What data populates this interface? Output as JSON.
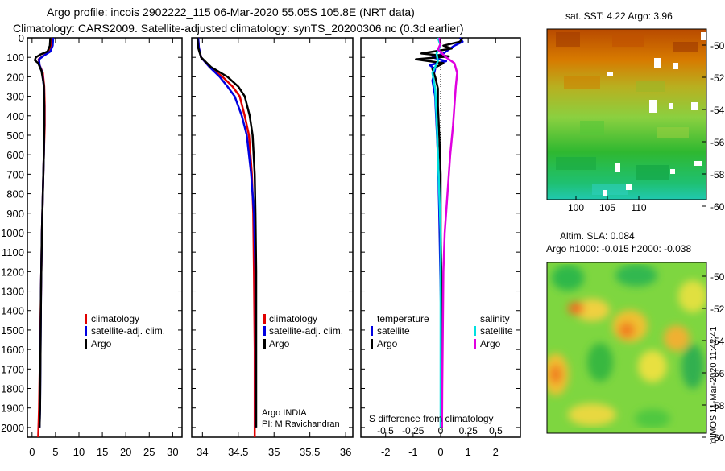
{
  "header": {
    "title_line1": "Argo profile: incois 2902222_115 06-Mar-2020 55.05S 105.8E (NRT data)",
    "title_line2": "Climatology: CARS2009. Satellite-adjusted climatology: synTS_20200306.nc (0.3d earlier)"
  },
  "colors": {
    "climatology": "#e00000",
    "satellite_adj": "#0000e0",
    "argo": "#000000",
    "temp_satellite": "#0000e0",
    "temp_argo": "#000000",
    "sal_satellite": "#00e0e0",
    "sal_argo": "#e000e0"
  },
  "depth_ticks": [
    "0",
    "100",
    "200",
    "300",
    "400",
    "500",
    "600",
    "700",
    "800",
    "900",
    "1000",
    "1100",
    "1200",
    "1300",
    "1400",
    "1500",
    "1600",
    "1700",
    "1800",
    "1900",
    "2000"
  ],
  "legend": {
    "climatology": "climatology",
    "satellite_adj": "satellite-adj. clim.",
    "argo": "Argo",
    "temperature": "temperature",
    "salinity": "salinity",
    "satellite": "satellite"
  },
  "credits": {
    "line1": "Argo INDIA",
    "line2": "PI: M Ravichandran"
  },
  "diff_label": "S difference from climatology",
  "diff_upper_ticks": [
    "-0.5",
    "-0.25",
    "0",
    "0.25",
    "0.5"
  ],
  "maps": {
    "sst": {
      "title": "sat. SST: 4.22 Argo: 3.96",
      "lat_ticks": [
        "-50",
        "-52",
        "-54",
        "-56",
        "-58",
        "-60"
      ],
      "lon_ticks": [
        "100",
        "105",
        "110"
      ]
    },
    "sla": {
      "title1": "Altim. SLA: 0.084",
      "title2": "Argo h1000: -0.015 h2000: -0.038",
      "lat_ticks": [
        "-50",
        "-52",
        "-54",
        "-56",
        "-58",
        "-60"
      ]
    },
    "watermark": "©IMOS 11-Mar-2020 11:42:41"
  },
  "chart_data": [
    {
      "type": "line",
      "name": "temperature_profile",
      "ylabel": "depth",
      "ylim": [
        2050,
        0
      ],
      "xlim": [
        -1,
        32
      ],
      "xticks": [
        "0",
        "5",
        "10",
        "15",
        "20",
        "25",
        "30"
      ],
      "series": [
        {
          "name": "climatology",
          "points": [
            [
              4.2,
              0
            ],
            [
              4.1,
              40
            ],
            [
              3.8,
              70
            ],
            [
              2.5,
              90
            ],
            [
              1.4,
              110
            ],
            [
              1.6,
              140
            ],
            [
              2.3,
              180
            ],
            [
              2.6,
              250
            ],
            [
              2.7,
              350
            ],
            [
              2.7,
              450
            ],
            [
              2.5,
              600
            ],
            [
              2.3,
              800
            ],
            [
              2.1,
              1000
            ],
            [
              1.9,
              1300
            ],
            [
              1.7,
              1600
            ],
            [
              1.5,
              1900
            ],
            [
              1.3,
              2050
            ]
          ]
        },
        {
          "name": "satellite-adj. clim.",
          "points": [
            [
              4.5,
              0
            ],
            [
              4.4,
              40
            ],
            [
              3.9,
              70
            ],
            [
              2.6,
              90
            ],
            [
              1.5,
              110
            ],
            [
              1.6,
              140
            ],
            [
              2.2,
              180
            ],
            [
              2.5,
              250
            ],
            [
              2.6,
              350
            ],
            [
              2.6,
              450
            ],
            [
              2.5,
              600
            ],
            [
              2.3,
              800
            ],
            [
              2.1,
              1000
            ],
            [
              1.9,
              1300
            ],
            [
              1.8,
              1600
            ],
            [
              1.7,
              1900
            ],
            [
              1.6,
              2000
            ]
          ]
        },
        {
          "name": "Argo",
          "points": [
            [
              3.9,
              0
            ],
            [
              3.8,
              40
            ],
            [
              3.3,
              70
            ],
            [
              1.8,
              85
            ],
            [
              0.8,
              100
            ],
            [
              0.6,
              115
            ],
            [
              1.3,
              130
            ],
            [
              2.0,
              170
            ],
            [
              2.5,
              240
            ],
            [
              2.6,
              350
            ],
            [
              2.6,
              450
            ],
            [
              2.5,
              600
            ],
            [
              2.3,
              800
            ],
            [
              2.1,
              1000
            ],
            [
              1.9,
              1300
            ],
            [
              1.8,
              1600
            ],
            [
              1.7,
              1900
            ],
            [
              1.6,
              2000
            ]
          ]
        }
      ]
    },
    {
      "type": "line",
      "name": "salinity_profile",
      "ylim": [
        2050,
        0
      ],
      "xlim": [
        33.85,
        36.1
      ],
      "xticks": [
        "34",
        "34.5",
        "35",
        "35.5",
        "36"
      ],
      "series": [
        {
          "name": "climatology",
          "points": [
            [
              33.94,
              0
            ],
            [
              33.95,
              50
            ],
            [
              33.98,
              100
            ],
            [
              34.1,
              150
            ],
            [
              34.28,
              200
            ],
            [
              34.42,
              250
            ],
            [
              34.52,
              300
            ],
            [
              34.59,
              400
            ],
            [
              34.65,
              500
            ],
            [
              34.69,
              700
            ],
            [
              34.71,
              900
            ],
            [
              34.72,
              1200
            ],
            [
              34.73,
              1600
            ],
            [
              34.73,
              2050
            ]
          ]
        },
        {
          "name": "satellite-adj. clim.",
          "points": [
            [
              33.94,
              0
            ],
            [
              33.95,
              50
            ],
            [
              33.98,
              100
            ],
            [
              34.1,
              150
            ],
            [
              34.24,
              200
            ],
            [
              34.35,
              250
            ],
            [
              34.45,
              300
            ],
            [
              34.55,
              400
            ],
            [
              34.62,
              500
            ],
            [
              34.68,
              700
            ],
            [
              34.72,
              900
            ],
            [
              34.74,
              1200
            ],
            [
              34.74,
              1600
            ],
            [
              34.74,
              2000
            ]
          ]
        },
        {
          "name": "Argo",
          "points": [
            [
              33.93,
              0
            ],
            [
              33.94,
              50
            ],
            [
              33.98,
              100
            ],
            [
              34.12,
              150
            ],
            [
              34.35,
              200
            ],
            [
              34.5,
              250
            ],
            [
              34.59,
              300
            ],
            [
              34.66,
              400
            ],
            [
              34.7,
              500
            ],
            [
              34.73,
              700
            ],
            [
              34.74,
              900
            ],
            [
              34.75,
              1200
            ],
            [
              34.75,
              1600
            ],
            [
              34.75,
              2000
            ]
          ]
        }
      ]
    },
    {
      "type": "line",
      "name": "difference_profile",
      "ylim": [
        2050,
        0
      ],
      "xlim": [
        -2.9,
        2.9
      ],
      "xticks": [
        "-2",
        "-1",
        "0",
        "1",
        "2"
      ],
      "xlabel": "S difference from climatology",
      "series": [
        {
          "name": "temperature satellite",
          "points": [
            [
              0.7,
              0
            ],
            [
              0.8,
              20
            ],
            [
              0.5,
              40
            ],
            [
              0.3,
              60
            ],
            [
              0.1,
              80
            ],
            [
              -0.3,
              100
            ],
            [
              0.2,
              120
            ],
            [
              -0.4,
              140
            ],
            [
              -0.2,
              160
            ],
            [
              -0.3,
              220
            ],
            [
              -0.2,
              300
            ],
            [
              -0.15,
              450
            ],
            [
              -0.1,
              600
            ],
            [
              -0.05,
              900
            ],
            [
              0.0,
              1300
            ],
            [
              0.05,
              1700
            ],
            [
              0.05,
              2000
            ]
          ]
        },
        {
          "name": "temperature Argo",
          "points": [
            [
              0.8,
              0
            ],
            [
              0.7,
              20
            ],
            [
              0.1,
              40
            ],
            [
              0.4,
              55
            ],
            [
              -0.7,
              80
            ],
            [
              0.3,
              95
            ],
            [
              -0.9,
              110
            ],
            [
              0.1,
              130
            ],
            [
              -0.3,
              160
            ],
            [
              -0.2,
              200
            ],
            [
              -0.1,
              260
            ],
            [
              -0.1,
              350
            ],
            [
              -0.05,
              500
            ],
            [
              0.0,
              700
            ],
            [
              0.0,
              1000
            ],
            [
              0.05,
              1400
            ],
            [
              0.05,
              1800
            ],
            [
              0.05,
              2000
            ]
          ]
        },
        {
          "name": "salinity satellite",
          "points": [
            [
              -0.1,
              0
            ],
            [
              0.0,
              40
            ],
            [
              -0.15,
              80
            ],
            [
              -0.1,
              120
            ],
            [
              -0.3,
              180
            ],
            [
              -0.2,
              260
            ],
            [
              -0.15,
              400
            ],
            [
              -0.1,
              600
            ],
            [
              -0.05,
              800
            ],
            [
              0.0,
              1000
            ],
            [
              0.0,
              1400
            ],
            [
              0.0,
              1800
            ],
            [
              0.0,
              2000
            ]
          ]
        },
        {
          "name": "salinity Argo",
          "points": [
            [
              -0.05,
              0
            ],
            [
              0.0,
              30
            ],
            [
              -0.1,
              60
            ],
            [
              0.2,
              100
            ],
            [
              0.5,
              130
            ],
            [
              0.6,
              180
            ],
            [
              0.55,
              250
            ],
            [
              0.5,
              350
            ],
            [
              0.45,
              450
            ],
            [
              0.35,
              600
            ],
            [
              0.25,
              800
            ],
            [
              0.15,
              1000
            ],
            [
              0.1,
              1200
            ],
            [
              0.08,
              1500
            ],
            [
              0.06,
              1800
            ],
            [
              0.05,
              2000
            ]
          ]
        }
      ]
    }
  ]
}
